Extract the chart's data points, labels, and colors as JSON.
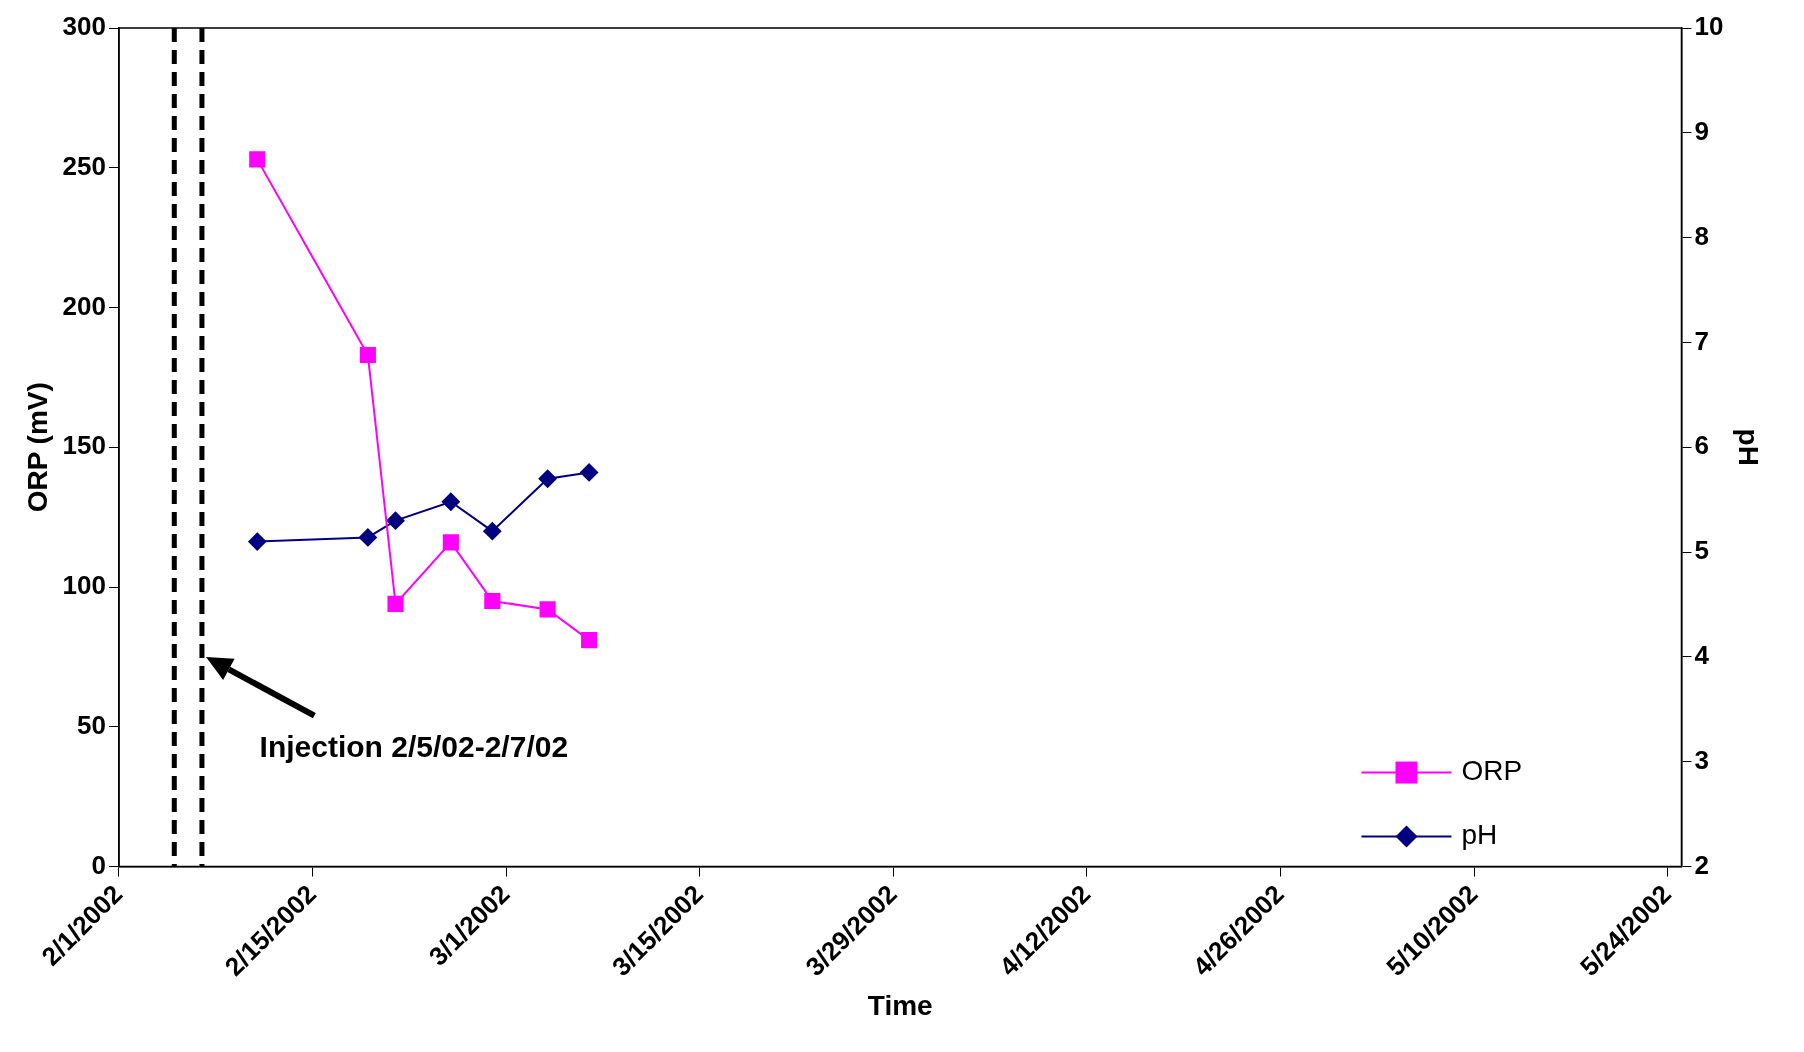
{
  "chart_data": {
    "type": "line",
    "xlabel": "Time",
    "ylabel": "ORP (mV)",
    "y2label": "pH",
    "xlim": [
      "2002-02-01",
      "2002-05-25"
    ],
    "xticks": [
      {
        "value": "2002-02-01",
        "label": "2/1/2002"
      },
      {
        "value": "2002-02-15",
        "label": "2/15/2002"
      },
      {
        "value": "2002-03-01",
        "label": "3/1/2002"
      },
      {
        "value": "2002-03-15",
        "label": "3/15/2002"
      },
      {
        "value": "2002-03-29",
        "label": "3/29/2002"
      },
      {
        "value": "2002-04-12",
        "label": "4/12/2002"
      },
      {
        "value": "2002-04-26",
        "label": "4/26/2002"
      },
      {
        "value": "2002-05-10",
        "label": "5/10/2002"
      },
      {
        "value": "2002-05-24",
        "label": "5/24/2002"
      }
    ],
    "ylim": [
      0,
      300
    ],
    "yticks": [
      0,
      50,
      100,
      150,
      200,
      250,
      300
    ],
    "y2lim": [
      2,
      10
    ],
    "y2ticks": [
      2,
      3,
      4,
      5,
      6,
      7,
      8,
      9,
      10
    ],
    "x": [
      "2002-02-11",
      "2002-02-19",
      "2002-02-21",
      "2002-02-25",
      "2002-02-28",
      "2002-03-04",
      "2002-03-07"
    ],
    "series": [
      {
        "name": "ORP",
        "color": "#ff00ff",
        "marker": "square",
        "values": [
          253,
          183,
          94,
          116,
          95,
          92,
          81
        ]
      },
      {
        "name": "pH",
        "color": "#000080",
        "marker": "diamond",
        "axis": "y2",
        "values": [
          5.1,
          5.14,
          5.3,
          5.48,
          5.2,
          5.7,
          5.76
        ]
      }
    ],
    "ref_lines": [
      {
        "axis": "x",
        "value": "2002-02-05",
        "color": "#000000",
        "line_style": "dashed"
      },
      {
        "axis": "x",
        "value": "2002-02-07",
        "color": "#000000",
        "line_style": "dashed"
      }
    ],
    "annotations": [
      "Injection 2/5/02-2/7/02"
    ],
    "grid": false,
    "legend": "bottom right"
  }
}
